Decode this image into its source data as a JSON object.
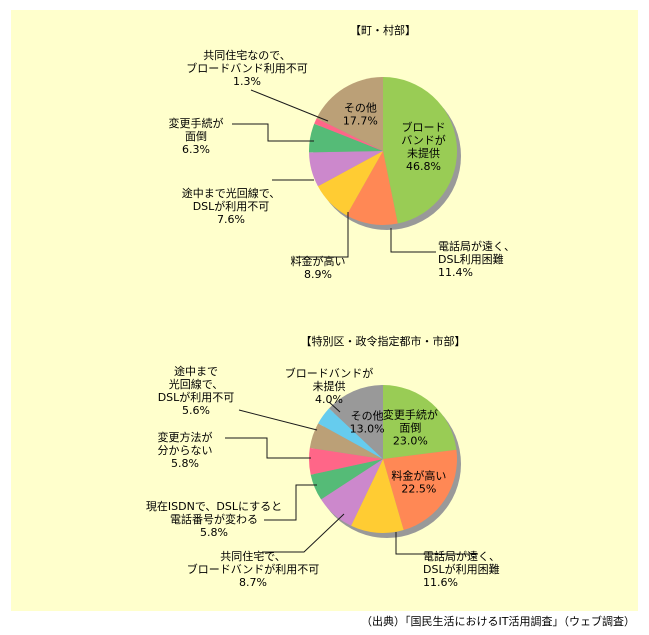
{
  "source": "（出典）「国民生活におけるIT活用調査」（ウェブ調査）",
  "colors": {
    "panel_bg": "#ffffcc",
    "shadow": "#999999",
    "leader": "#1a1a1a"
  },
  "chart_data": [
    {
      "type": "pie",
      "title": "【町・村部】",
      "unit": "%",
      "slices": [
        {
          "label": [
            "ブロード",
            "バンドが",
            "未提供"
          ],
          "value": 46.8,
          "value_text": "46.8%",
          "color": "#99cc55"
        },
        {
          "label": [
            "電話局が遠く、",
            "DSL利用困難"
          ],
          "value": 11.4,
          "value_text": "11.4%",
          "color": "#ff8855"
        },
        {
          "label": [
            "料金が高い"
          ],
          "value": 8.9,
          "value_text": "8.9%",
          "color": "#ffcc33"
        },
        {
          "label": [
            "途中まで光回線で、",
            "DSLが利用不可"
          ],
          "value": 7.6,
          "value_text": "7.6%",
          "color": "#cc88cc"
        },
        {
          "label": [
            "変更手続が",
            "面倒"
          ],
          "value": 6.3,
          "value_text": "6.3%",
          "color": "#55bb77"
        },
        {
          "label": [
            "共同住宅なので、",
            "ブロードバンド利用不可"
          ],
          "value": 1.3,
          "value_text": "1.3%",
          "color": "#ff6688"
        },
        {
          "label": [
            "その他"
          ],
          "value": 17.7,
          "value_text": "17.7%",
          "color": "#bba077"
        }
      ]
    },
    {
      "type": "pie",
      "title": "【特別区・政令指定都市・市部】",
      "unit": "%",
      "slices": [
        {
          "label": [
            "変更手続が",
            "面倒"
          ],
          "value": 23.0,
          "value_text": "23.0%",
          "color": "#99cc55"
        },
        {
          "label": [
            "料金が高い"
          ],
          "value": 22.5,
          "value_text": "22.5%",
          "color": "#ff8855"
        },
        {
          "label": [
            "電話局が遠く、",
            "DSLが利用困難"
          ],
          "value": 11.6,
          "value_text": "11.6%",
          "color": "#ffcc33"
        },
        {
          "label": [
            "共同住宅で、",
            "ブロードバンドが利用不可"
          ],
          "value": 8.7,
          "value_text": "8.7%",
          "color": "#cc88cc"
        },
        {
          "label": [
            "現在ISDNで、DSLにすると",
            "電話番号が変わる"
          ],
          "value": 5.8,
          "value_text": "5.8%",
          "color": "#55bb77"
        },
        {
          "label": [
            "変更方法が",
            "分からない"
          ],
          "value": 5.8,
          "value_text": "5.8%",
          "color": "#ff6688"
        },
        {
          "label": [
            "途中まで",
            "光回線で、",
            "DSLが利用不可"
          ],
          "value": 5.6,
          "value_text": "5.6%",
          "color": "#bba077"
        },
        {
          "label": [
            "ブロードバンドが",
            "未提供"
          ],
          "value": 4.0,
          "value_text": "4.0%",
          "color": "#66ccee"
        },
        {
          "label": [
            "その他"
          ],
          "value": 13.0,
          "value_text": "13.0%",
          "color": "#999999"
        }
      ]
    }
  ]
}
